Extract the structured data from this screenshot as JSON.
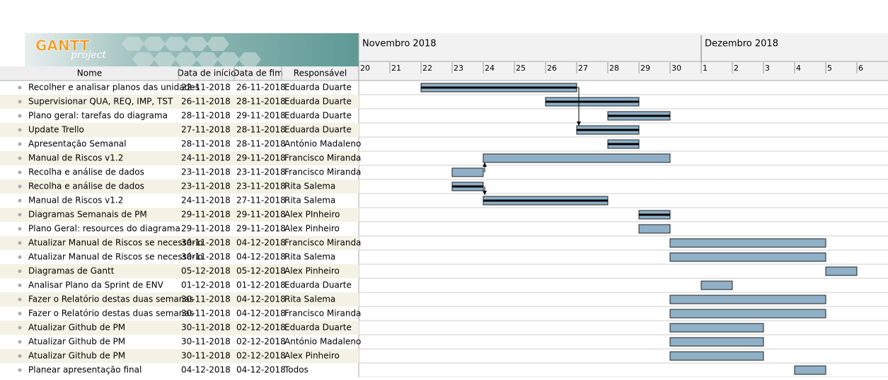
{
  "logo": {
    "main": "GANTT",
    "sub": "project"
  },
  "columns": [
    "Nome",
    "Data de início",
    "Data de fim",
    "Responsável"
  ],
  "timeline": {
    "months": [
      {
        "label": "Novembro 2018",
        "days": [
          20,
          21,
          22,
          23,
          24,
          25,
          26,
          27,
          28,
          29,
          30
        ]
      },
      {
        "label": "Dezembro 2018",
        "days": [
          1,
          2,
          3,
          4,
          5,
          6
        ]
      }
    ]
  },
  "tasks": [
    {
      "name": "Recolher e analisar planos das unidades",
      "start": "22-11-2018",
      "end": "26-11-2018",
      "resource": "Eduarda Duarte",
      "done": true
    },
    {
      "name": "Supervisionar QUA, REQ, IMP, TST",
      "start": "26-11-2018",
      "end": "28-11-2018",
      "resource": "Eduarda Duarte",
      "done": true
    },
    {
      "name": "Plano geral: tarefas do diagrama",
      "start": "28-11-2018",
      "end": "29-11-2018",
      "resource": "Eduarda Duarte",
      "done": true
    },
    {
      "name": "Update Trello",
      "start": "27-11-2018",
      "end": "28-11-2018",
      "resource": "Eduarda Duarte",
      "done": true
    },
    {
      "name": "Apresentação Semanal",
      "start": "28-11-2018",
      "end": "28-11-2018",
      "resource": "António Madaleno",
      "done": true
    },
    {
      "name": "Manual de Riscos v1.2",
      "start": "24-11-2018",
      "end": "29-11-2018",
      "resource": "Francisco Miranda",
      "done": false
    },
    {
      "name": "Recolha e análise de dados",
      "start": "23-11-2018",
      "end": "23-11-2018",
      "resource": "Francisco Miranda",
      "done": false
    },
    {
      "name": "Recolha e análise de dados",
      "start": "23-11-2018",
      "end": "23-11-2018",
      "resource": "Rita Salema",
      "done": true
    },
    {
      "name": "Manual de Riscos v1.2",
      "start": "24-11-2018",
      "end": "27-11-2018",
      "resource": "Rita Salema",
      "done": true
    },
    {
      "name": "Diagramas Semanais de PM",
      "start": "29-11-2018",
      "end": "29-11-2018",
      "resource": "Alex PInheiro",
      "done": true
    },
    {
      "name": "Plano Geral: resources do diagrama",
      "start": "29-11-2018",
      "end": "29-11-2018",
      "resource": "Alex Pinheiro",
      "done": false
    },
    {
      "name": "Atualizar Manual de Riscos se necessário",
      "start": "30-11-2018",
      "end": "04-12-2018",
      "resource": "Francisco Miranda",
      "done": false
    },
    {
      "name": "Atualizar Manual de Riscos se necessário",
      "start": "30-11-2018",
      "end": "04-12-2018",
      "resource": "Rita Salema",
      "done": false
    },
    {
      "name": "Diagramas de Gantt",
      "start": "05-12-2018",
      "end": "05-12-2018",
      "resource": "Alex Pinheiro",
      "done": false
    },
    {
      "name": "Analisar Plano da Sprint de ENV",
      "start": "01-12-2018",
      "end": "01-12-2018",
      "resource": "Eduarda Duarte",
      "done": false
    },
    {
      "name": "Fazer o Relatório destas duas semanas",
      "start": "30-11-2018",
      "end": "04-12-2018",
      "resource": "Rita Salema",
      "done": false
    },
    {
      "name": "Fazer o Relatório destas duas semanas",
      "start": "30-11-2018",
      "end": "04-12-2018",
      "resource": "Francisco Miranda",
      "done": false
    },
    {
      "name": "Atualizar Github de PM",
      "start": "30-11-2018",
      "end": "02-12-2018",
      "resource": "Eduarda Duarte",
      "done": false
    },
    {
      "name": "Atualizar Github de PM",
      "start": "30-11-2018",
      "end": "02-12-2018",
      "resource": "António Madaleno",
      "done": false
    },
    {
      "name": "Atualizar Github de PM",
      "start": "30-11-2018",
      "end": "02-12-2018",
      "resource": "Alex Pinheiro",
      "done": false
    },
    {
      "name": "Planear apresentação final",
      "start": "04-12-2018",
      "end": "04-12-2018",
      "resource": "Todos",
      "done": false
    }
  ]
}
